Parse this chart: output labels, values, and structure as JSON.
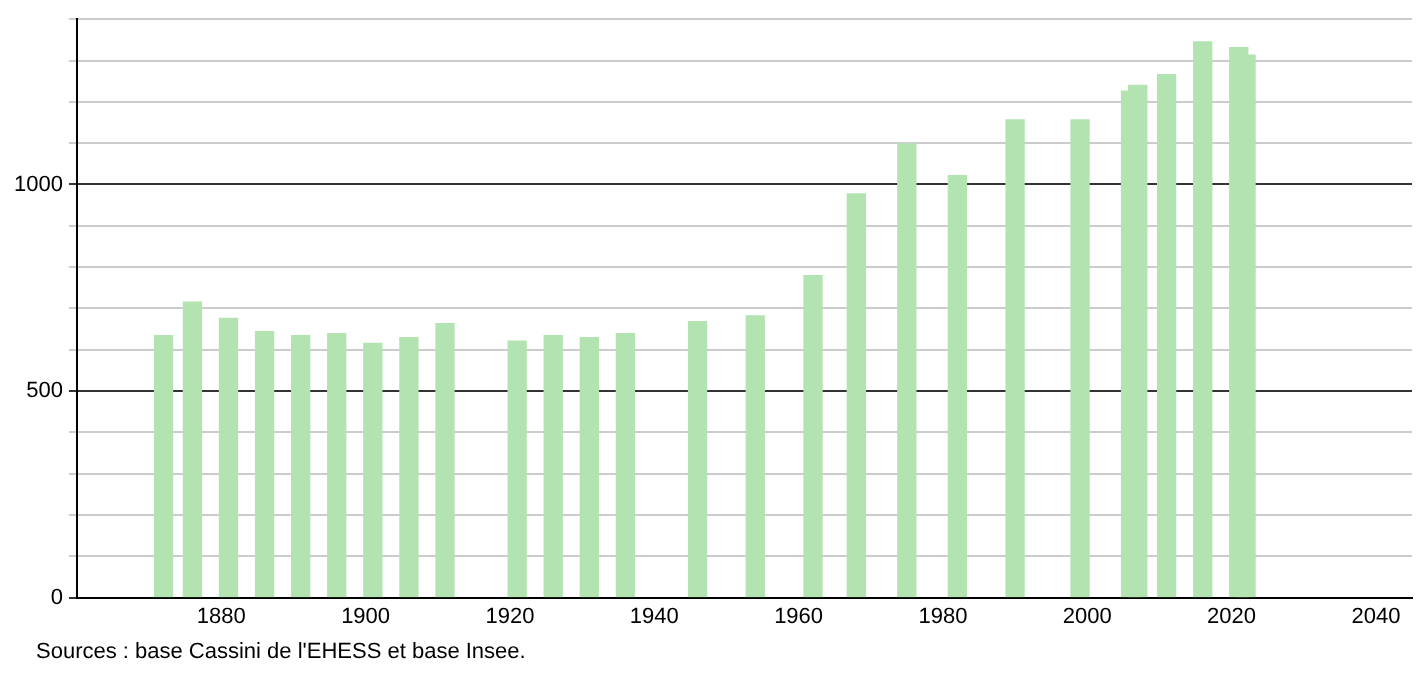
{
  "chart_data": {
    "type": "bar",
    "x": [
      1872,
      1876,
      1881,
      1886,
      1891,
      1896,
      1901,
      1906,
      1911,
      1921,
      1926,
      1931,
      1936,
      1946,
      1954,
      1962,
      1968,
      1975,
      1982,
      1990,
      1999,
      2006,
      2007,
      2011,
      2016,
      2021,
      2022
    ],
    "values": [
      634,
      715,
      676,
      644,
      634,
      639,
      615,
      629,
      663,
      621,
      634,
      629,
      639,
      668,
      682,
      779,
      977,
      1098,
      1021,
      1156,
      1156,
      1226,
      1240,
      1266,
      1345,
      1331,
      1313
    ],
    "color": "#b3e3b0",
    "xlim": [
      1860,
      2045
    ],
    "xticks": [
      1880,
      1900,
      1920,
      1940,
      1960,
      1980,
      2000,
      2020,
      2040
    ],
    "ylim": [
      0,
      1400
    ],
    "yticks": [
      0,
      {
        "value": 100,
        "label": null
      },
      {
        "value": 200,
        "label": null
      },
      {
        "value": 300,
        "label": null
      },
      {
        "value": 400,
        "label": null
      },
      500,
      {
        "value": 600,
        "label": null
      },
      {
        "value": 700,
        "label": null
      },
      {
        "value": 800,
        "label": null
      },
      {
        "value": 900,
        "label": null
      },
      1000,
      {
        "value": 1100,
        "label": null
      },
      {
        "value": 1200,
        "label": null
      },
      {
        "value": 1300,
        "label": null
      },
      {
        "value": 1400,
        "label": null
      }
    ],
    "grid": "y",
    "legend": false,
    "annotations": [
      "Sources : base Cassini de l'EHESS et base Insee."
    ]
  }
}
